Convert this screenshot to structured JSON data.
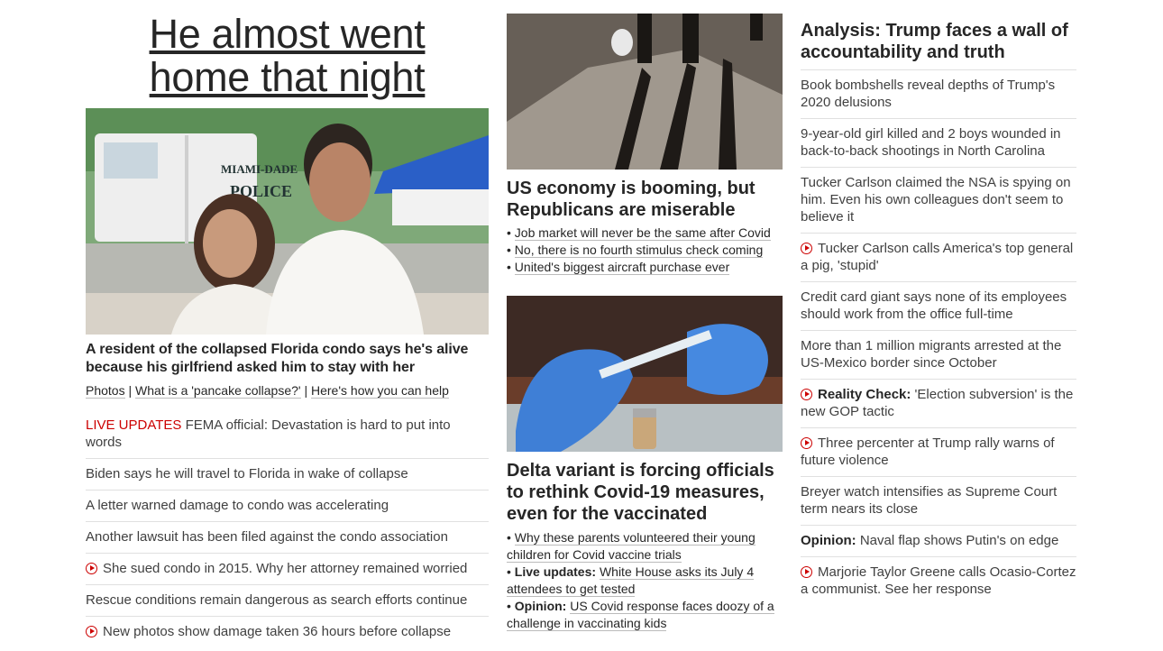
{
  "left": {
    "hero_title_line1": "He almost went",
    "hero_title_line2": "home that night",
    "photo_sign_1": "MIAMI-DADE",
    "photo_sign_2": "POLICE",
    "headline": "A resident of the collapsed Florida condo says he's alive because his girlfriend asked him to stay with her",
    "links": [
      "Photos",
      "What is a 'pancake collapse?'",
      "Here's how you can help"
    ],
    "separator": "|",
    "live_label": "LIVE UPDATES",
    "items": [
      "FEMA official: Devastation is hard to put into words",
      "Biden says he will travel to Florida in wake of collapse",
      "A letter warned damage to condo was accelerating",
      "Another lawsuit has been filed against the condo association",
      "She sued condo in 2015. Why her attorney remained worried",
      "Rescue conditions remain dangerous as search efforts continue",
      "New photos show damage taken 36 hours before collapse"
    ]
  },
  "middle": {
    "story1": {
      "headline": "US economy is booming, but Republicans are miserable",
      "bullets": [
        "Job market will never be the same after Covid",
        "No, there is no fourth stimulus check coming",
        "United's biggest aircraft purchase ever"
      ]
    },
    "story2": {
      "headline": "Delta variant is forcing officials to rethink Covid-19 measures, even for the vaccinated",
      "bullet1": "Why these parents volunteered their young children for Covid vaccine trials",
      "bullet2_label": "Live updates:",
      "bullet2_text": "White House asks its July 4 attendees to get tested",
      "bullet3_label": "Opinion:",
      "bullet3_text": "US Covid response faces doozy of a challenge in vaccinating kids"
    }
  },
  "right": {
    "headline": "Analysis: Trump faces a wall of accountability and truth",
    "items": [
      "Book bombshells reveal depths of Trump's 2020 delusions",
      "9-year-old girl killed and 2 boys wounded in back-to-back shootings in North Carolina",
      "Tucker Carlson claimed the NSA is spying on him. Even his own colleagues don't seem to believe it",
      "Tucker Carlson calls America's top general a pig, 'stupid'",
      "Credit card giant says none of its employees should work from the office full-time",
      "More than 1 million migrants arrested at the US-Mexico border since October",
      "'Election subversion' is the new GOP tactic",
      "Three percenter at Trump rally warns of future violence",
      "Breyer watch intensifies as Supreme Court term nears its close",
      "Naval flap shows Putin's on edge",
      "Marjorie Taylor Greene calls Ocasio-Cortez a communist. See her response"
    ],
    "reality_label": "Reality Check:",
    "opinion_label": "Opinion:"
  },
  "colors": {
    "accent_red": "#cc0000",
    "text": "#262626"
  }
}
